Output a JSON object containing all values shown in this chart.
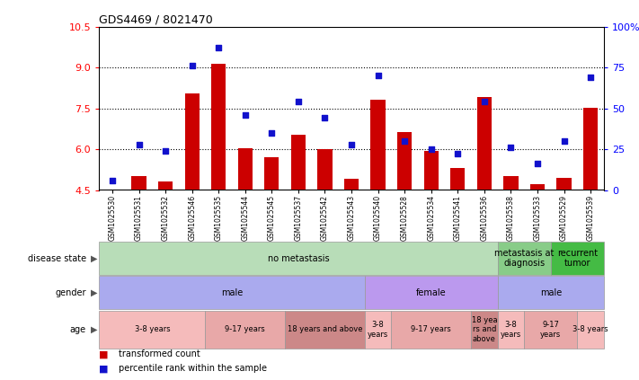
{
  "title": "GDS4469 / 8021470",
  "samples": [
    "GSM1025530",
    "GSM1025531",
    "GSM1025532",
    "GSM1025546",
    "GSM1025535",
    "GSM1025544",
    "GSM1025545",
    "GSM1025537",
    "GSM1025542",
    "GSM1025543",
    "GSM1025540",
    "GSM1025528",
    "GSM1025534",
    "GSM1025541",
    "GSM1025536",
    "GSM1025538",
    "GSM1025533",
    "GSM1025529",
    "GSM1025539"
  ],
  "bar_values": [
    4.51,
    5.02,
    4.82,
    8.05,
    9.12,
    6.05,
    5.72,
    6.52,
    6.01,
    4.92,
    7.82,
    6.62,
    5.92,
    5.32,
    7.92,
    5.02,
    4.72,
    4.95,
    7.52
  ],
  "scatter_pct": [
    6.0,
    28.0,
    24.0,
    76.0,
    87.0,
    46.0,
    35.0,
    54.0,
    44.0,
    28.0,
    70.0,
    30.0,
    25.0,
    22.0,
    54.0,
    26.0,
    16.0,
    30.0,
    69.0
  ],
  "ylim_left": [
    4.5,
    10.5
  ],
  "ylim_right": [
    0,
    100
  ],
  "yticks_left": [
    4.5,
    6.0,
    7.5,
    9.0,
    10.5
  ],
  "yticks_right": [
    0,
    25,
    50,
    75,
    100
  ],
  "bar_color": "#cc0000",
  "scatter_color": "#1111cc",
  "hlines": [
    6.0,
    7.5,
    9.0
  ],
  "disease_groups": [
    {
      "label": "no metastasis",
      "start": 0,
      "end": 15,
      "color": "#b8ddb8"
    },
    {
      "label": "metastasis at\ndiagnosis",
      "start": 15,
      "end": 17,
      "color": "#88cc88"
    },
    {
      "label": "recurrent\ntumor",
      "start": 17,
      "end": 19,
      "color": "#44bb44"
    }
  ],
  "gender_groups": [
    {
      "label": "male",
      "start": 0,
      "end": 10,
      "color": "#aaaaee"
    },
    {
      "label": "female",
      "start": 10,
      "end": 15,
      "color": "#bb99ee"
    },
    {
      "label": "male",
      "start": 15,
      "end": 19,
      "color": "#aaaaee"
    }
  ],
  "age_groups": [
    {
      "label": "3-8 years",
      "start": 0,
      "end": 4,
      "color": "#f5bbbb"
    },
    {
      "label": "9-17 years",
      "start": 4,
      "end": 7,
      "color": "#e8a8a8"
    },
    {
      "label": "18 years and above",
      "start": 7,
      "end": 10,
      "color": "#cc8888"
    },
    {
      "label": "3-8\nyears",
      "start": 10,
      "end": 11,
      "color": "#f5bbbb"
    },
    {
      "label": "9-17 years",
      "start": 11,
      "end": 14,
      "color": "#e8a8a8"
    },
    {
      "label": "18 yea\nrs and\nabove",
      "start": 14,
      "end": 15,
      "color": "#cc8888"
    },
    {
      "label": "3-8\nyears",
      "start": 15,
      "end": 16,
      "color": "#f5bbbb"
    },
    {
      "label": "9-17\nyears",
      "start": 16,
      "end": 18,
      "color": "#e8a8a8"
    },
    {
      "label": "3-8 years",
      "start": 18,
      "end": 19,
      "color": "#f5bbbb"
    }
  ],
  "row_labels": [
    "disease state",
    "gender",
    "age"
  ],
  "legend_items": [
    {
      "label": "transformed count",
      "color": "#cc0000"
    },
    {
      "label": "percentile rank within the sample",
      "color": "#1111cc"
    }
  ]
}
